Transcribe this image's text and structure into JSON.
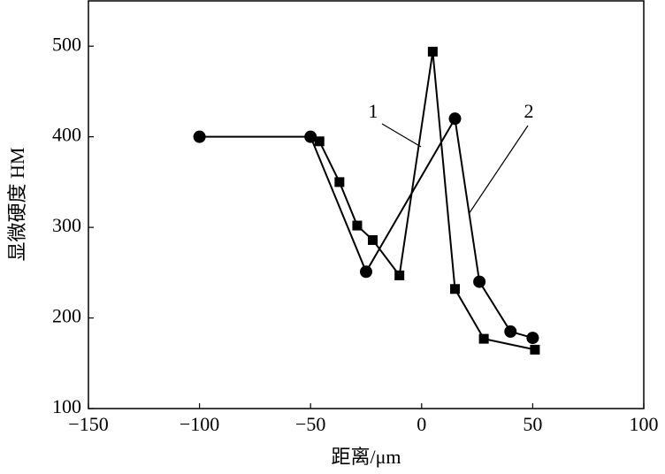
{
  "chart_data": {
    "type": "line",
    "x_label": "距离/μm",
    "y_label": "显微硬度 HM",
    "xlim": [
      -150,
      100
    ],
    "xticks": [
      {
        "value": -150,
        "label": "−150"
      },
      {
        "value": -100,
        "label": "−100"
      },
      {
        "value": -50,
        "label": "−50"
      },
      0,
      50,
      100
    ],
    "ylim": [
      100,
      550
    ],
    "yticks": [
      100,
      200,
      300,
      400,
      500
    ],
    "series": [
      {
        "name": "1",
        "color": "#000000",
        "marker": "square",
        "x": [
          -46,
          -37,
          -29,
          -22,
          -10,
          5,
          15,
          28,
          51
        ],
        "values": [
          395,
          350,
          302,
          286,
          247,
          494,
          232,
          177,
          165
        ]
      },
      {
        "name": "2",
        "color": "#000000",
        "marker": "circle",
        "x": [
          -100,
          -50,
          -25,
          15,
          26,
          40,
          50
        ],
        "values": [
          400,
          400,
          251,
          420,
          240,
          185,
          178
        ]
      }
    ]
  }
}
